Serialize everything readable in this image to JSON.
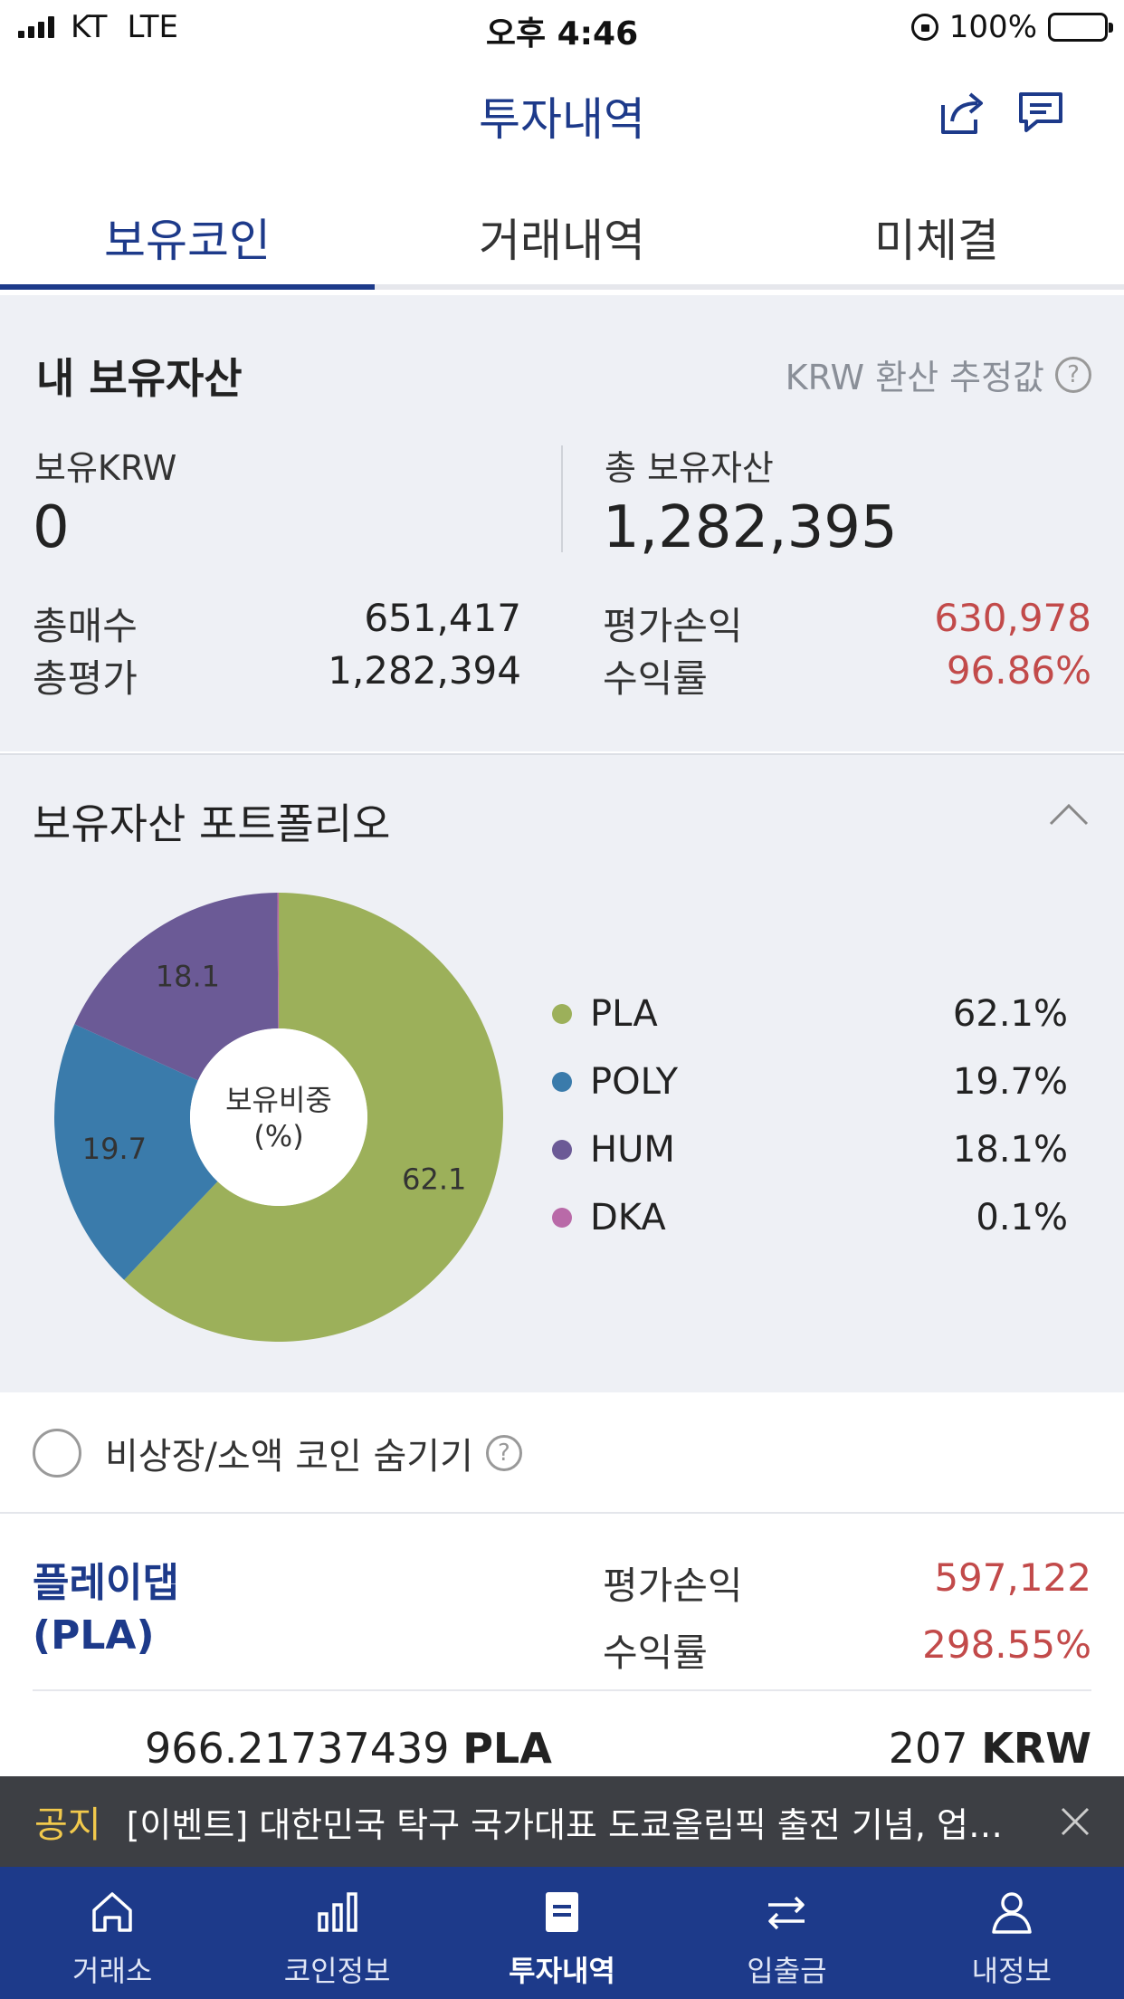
{
  "status_bar": {
    "carrier": "KT",
    "network": "LTE",
    "time": "오후 4:46",
    "battery": "100%"
  },
  "header": {
    "title": "투자내역"
  },
  "tabs": [
    {
      "label": "보유코인",
      "active": true
    },
    {
      "label": "거래내역",
      "active": false
    },
    {
      "label": "미체결",
      "active": false
    }
  ],
  "summary": {
    "title": "내 보유자산",
    "krw_note": "KRW 환산 추정값",
    "held_krw_label": "보유KRW",
    "held_krw_value": "0",
    "total_assets_label": "총 보유자산",
    "total_assets_value": "1,282,395",
    "total_buy_label": "총매수",
    "total_buy_value": "651,417",
    "total_eval_label": "총평가",
    "total_eval_value": "1,282,394",
    "eval_pnl_label": "평가손익",
    "eval_pnl_value": "630,978",
    "return_label": "수익률",
    "return_value": "96.86%"
  },
  "portfolio": {
    "title": "보유자산 포트폴리오",
    "center_label_line1": "보유비중",
    "center_label_line2": "(%)",
    "legend": [
      {
        "name": "PLA",
        "value": "62.1%",
        "color": "#9cb05a"
      },
      {
        "name": "POLY",
        "value": "19.7%",
        "color": "#3a7bab"
      },
      {
        "name": "HUM",
        "value": "18.1%",
        "color": "#6b5a96"
      },
      {
        "name": "DKA",
        "value": "0.1%",
        "color": "#b96aa8"
      }
    ]
  },
  "chart_data": {
    "type": "pie",
    "categories": [
      "PLA",
      "POLY",
      "HUM",
      "DKA"
    ],
    "values": [
      62.1,
      19.7,
      18.1,
      0.1
    ],
    "data_labels": [
      "62.1",
      "19.7",
      "18.1",
      ""
    ],
    "colors": [
      "#9cb05a",
      "#3a7bab",
      "#6b5a96",
      "#b96aa8"
    ],
    "donut": true,
    "legend_position": "right"
  },
  "hide_toggle": {
    "label": "비상장/소액 코인 숨기기",
    "checked": false
  },
  "holding": {
    "name_line1": "플레이댑",
    "name_line2": "(PLA)",
    "eval_pnl_label": "평가손익",
    "eval_pnl_value": "597,122",
    "return_label": "수익률",
    "return_value": "298.55%",
    "quantity": "966.21737439",
    "quantity_unit": "PLA",
    "price": "207",
    "price_unit": "KRW"
  },
  "notice": {
    "tag": "공지",
    "text": "[이벤트] 대한민국 탁구 국가대표 도쿄올림픽 출전 기념, 업…"
  },
  "bottom_nav": [
    {
      "label": "거래소",
      "icon": "home-icon",
      "active": false
    },
    {
      "label": "코인정보",
      "icon": "bar-chart-icon",
      "active": false
    },
    {
      "label": "투자내역",
      "icon": "document-icon",
      "active": true
    },
    {
      "label": "입출금",
      "icon": "transfer-icon",
      "active": false
    },
    {
      "label": "내정보",
      "icon": "user-icon",
      "active": false
    }
  ]
}
